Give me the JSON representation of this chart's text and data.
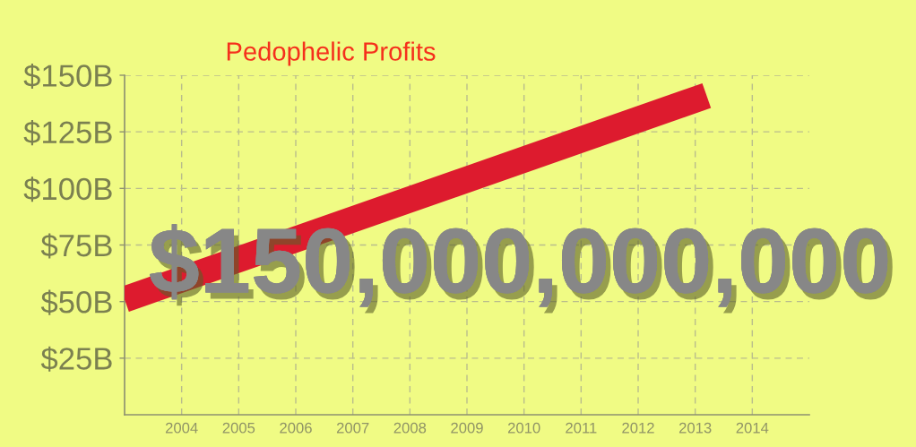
{
  "chart_data": {
    "type": "line",
    "title": "Pedophelic Profits",
    "annotations": [
      "$150,000,000,000"
    ],
    "x": [
      2003,
      2013.2
    ],
    "series": [
      {
        "color": "#dd1b2e",
        "values": [
          51,
          141
        ]
      }
    ],
    "xlim": [
      2003,
      2015
    ],
    "xticks": [
      2004,
      2005,
      2006,
      2007,
      2008,
      2009,
      2010,
      2011,
      2012,
      2013,
      2014
    ],
    "ylim": [
      0,
      150
    ],
    "yticks": [
      {
        "value": 25,
        "label": "$25B"
      },
      {
        "value": 50,
        "label": "$50B"
      },
      {
        "value": 75,
        "label": "$75B"
      },
      {
        "value": 100,
        "label": "$100B"
      },
      {
        "value": 125,
        "label": "$125B"
      },
      {
        "value": 150,
        "label": "$150B"
      }
    ],
    "grid": true,
    "marker": "none",
    "line_style": "solid"
  }
}
